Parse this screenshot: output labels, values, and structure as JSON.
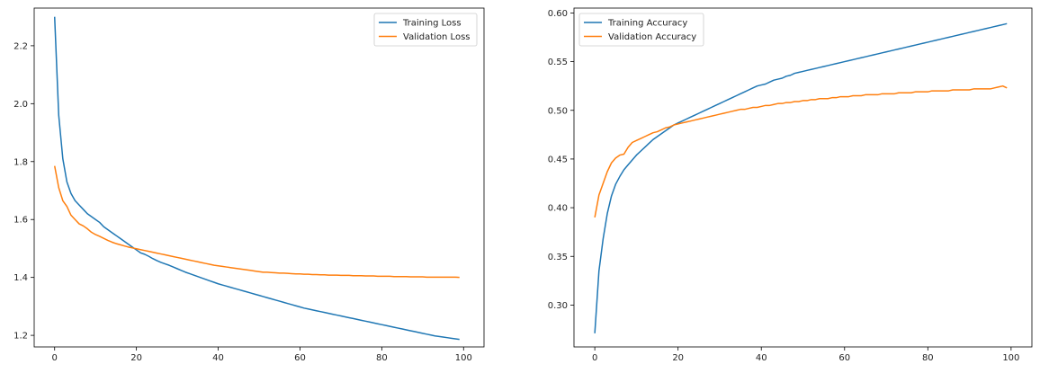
{
  "chart_data": [
    {
      "type": "line",
      "title": "",
      "xlabel": "",
      "ylabel": "",
      "xlim": [
        -5,
        105
      ],
      "ylim": [
        1.16,
        2.33
      ],
      "xticks": [
        0,
        20,
        40,
        60,
        80,
        100
      ],
      "yticks": [
        1.2,
        1.4,
        1.6,
        1.8,
        2.0,
        2.2
      ],
      "xtick_labels": [
        "0",
        "20",
        "40",
        "60",
        "80",
        "100"
      ],
      "ytick_labels": [
        "1.2",
        "1.4",
        "1.6",
        "1.8",
        "2.0",
        "2.2"
      ],
      "grid": false,
      "legend_position": "top-right",
      "series": [
        {
          "name": "Training Loss",
          "color": "#1f77b4",
          "values": [
            2.3,
            1.96,
            1.81,
            1.73,
            1.69,
            1.665,
            1.65,
            1.635,
            1.62,
            1.61,
            1.6,
            1.59,
            1.575,
            1.565,
            1.555,
            1.545,
            1.535,
            1.525,
            1.515,
            1.505,
            1.495,
            1.485,
            1.48,
            1.473,
            1.465,
            1.458,
            1.452,
            1.447,
            1.442,
            1.436,
            1.43,
            1.424,
            1.418,
            1.413,
            1.408,
            1.403,
            1.398,
            1.393,
            1.388,
            1.383,
            1.378,
            1.374,
            1.37,
            1.366,
            1.362,
            1.358,
            1.354,
            1.35,
            1.346,
            1.342,
            1.338,
            1.334,
            1.33,
            1.326,
            1.322,
            1.318,
            1.314,
            1.31,
            1.306,
            1.302,
            1.298,
            1.294,
            1.291,
            1.288,
            1.285,
            1.282,
            1.279,
            1.276,
            1.273,
            1.27,
            1.267,
            1.264,
            1.261,
            1.258,
            1.255,
            1.252,
            1.249,
            1.246,
            1.243,
            1.24,
            1.237,
            1.234,
            1.231,
            1.228,
            1.225,
            1.222,
            1.219,
            1.216,
            1.213,
            1.21,
            1.207,
            1.204,
            1.201,
            1.198,
            1.196,
            1.194,
            1.192,
            1.19,
            1.188,
            1.186
          ]
        },
        {
          "name": "Validation Loss",
          "color": "#ff7f0e",
          "values": [
            1.785,
            1.71,
            1.665,
            1.645,
            1.615,
            1.6,
            1.585,
            1.578,
            1.568,
            1.556,
            1.548,
            1.542,
            1.535,
            1.528,
            1.522,
            1.517,
            1.513,
            1.509,
            1.505,
            1.502,
            1.499,
            1.496,
            1.493,
            1.49,
            1.487,
            1.484,
            1.481,
            1.478,
            1.475,
            1.472,
            1.469,
            1.466,
            1.463,
            1.46,
            1.457,
            1.454,
            1.451,
            1.448,
            1.445,
            1.442,
            1.44,
            1.438,
            1.436,
            1.434,
            1.432,
            1.43,
            1.428,
            1.426,
            1.424,
            1.422,
            1.42,
            1.418,
            1.418,
            1.417,
            1.416,
            1.415,
            1.415,
            1.414,
            1.413,
            1.412,
            1.412,
            1.411,
            1.411,
            1.41,
            1.41,
            1.409,
            1.409,
            1.408,
            1.408,
            1.408,
            1.407,
            1.407,
            1.407,
            1.406,
            1.406,
            1.406,
            1.405,
            1.405,
            1.405,
            1.404,
            1.404,
            1.404,
            1.404,
            1.403,
            1.403,
            1.403,
            1.403,
            1.402,
            1.402,
            1.402,
            1.402,
            1.401,
            1.401,
            1.401,
            1.401,
            1.401,
            1.401,
            1.401,
            1.401,
            1.4
          ]
        }
      ]
    },
    {
      "type": "line",
      "title": "",
      "xlabel": "",
      "ylabel": "",
      "xlim": [
        -5,
        105
      ],
      "ylim": [
        0.257,
        0.605
      ],
      "xticks": [
        0,
        20,
        40,
        60,
        80,
        100
      ],
      "yticks": [
        0.3,
        0.35,
        0.4,
        0.45,
        0.5,
        0.55,
        0.6
      ],
      "xtick_labels": [
        "0",
        "20",
        "40",
        "60",
        "80",
        "100"
      ],
      "ytick_labels": [
        "0.30",
        "0.35",
        "0.40",
        "0.45",
        "0.50",
        "0.55",
        "0.60"
      ],
      "grid": false,
      "legend_position": "top-left",
      "series": [
        {
          "name": "Training Accuracy",
          "color": "#1f77b4",
          "values": [
            0.271,
            0.335,
            0.368,
            0.394,
            0.412,
            0.424,
            0.432,
            0.439,
            0.444,
            0.449,
            0.454,
            0.458,
            0.462,
            0.466,
            0.47,
            0.473,
            0.476,
            0.479,
            0.482,
            0.485,
            0.487,
            0.489,
            0.491,
            0.493,
            0.495,
            0.497,
            0.499,
            0.501,
            0.503,
            0.505,
            0.507,
            0.509,
            0.511,
            0.513,
            0.515,
            0.517,
            0.519,
            0.521,
            0.523,
            0.525,
            0.526,
            0.527,
            0.529,
            0.531,
            0.532,
            0.533,
            0.535,
            0.536,
            0.538,
            0.539,
            0.54,
            0.541,
            0.542,
            0.543,
            0.544,
            0.545,
            0.546,
            0.547,
            0.548,
            0.549,
            0.55,
            0.551,
            0.552,
            0.553,
            0.554,
            0.555,
            0.556,
            0.557,
            0.558,
            0.559,
            0.56,
            0.561,
            0.562,
            0.563,
            0.564,
            0.565,
            0.566,
            0.567,
            0.568,
            0.569,
            0.57,
            0.571,
            0.572,
            0.573,
            0.574,
            0.575,
            0.576,
            0.577,
            0.578,
            0.579,
            0.58,
            0.581,
            0.582,
            0.583,
            0.584,
            0.585,
            0.586,
            0.587,
            0.588,
            0.589
          ]
        },
        {
          "name": "Validation Accuracy",
          "color": "#ff7f0e",
          "values": [
            0.39,
            0.413,
            0.425,
            0.437,
            0.446,
            0.451,
            0.454,
            0.455,
            0.462,
            0.467,
            0.469,
            0.471,
            0.473,
            0.475,
            0.477,
            0.478,
            0.48,
            0.482,
            0.483,
            0.485,
            0.486,
            0.487,
            0.488,
            0.489,
            0.49,
            0.491,
            0.492,
            0.493,
            0.494,
            0.495,
            0.496,
            0.497,
            0.498,
            0.499,
            0.5,
            0.501,
            0.501,
            0.502,
            0.503,
            0.503,
            0.504,
            0.505,
            0.505,
            0.506,
            0.507,
            0.507,
            0.508,
            0.508,
            0.509,
            0.509,
            0.51,
            0.51,
            0.511,
            0.511,
            0.512,
            0.512,
            0.512,
            0.513,
            0.513,
            0.514,
            0.514,
            0.514,
            0.515,
            0.515,
            0.515,
            0.516,
            0.516,
            0.516,
            0.516,
            0.517,
            0.517,
            0.517,
            0.517,
            0.518,
            0.518,
            0.518,
            0.518,
            0.519,
            0.519,
            0.519,
            0.519,
            0.52,
            0.52,
            0.52,
            0.52,
            0.52,
            0.521,
            0.521,
            0.521,
            0.521,
            0.521,
            0.522,
            0.522,
            0.522,
            0.522,
            0.522,
            0.523,
            0.524,
            0.525,
            0.523
          ]
        }
      ]
    }
  ]
}
